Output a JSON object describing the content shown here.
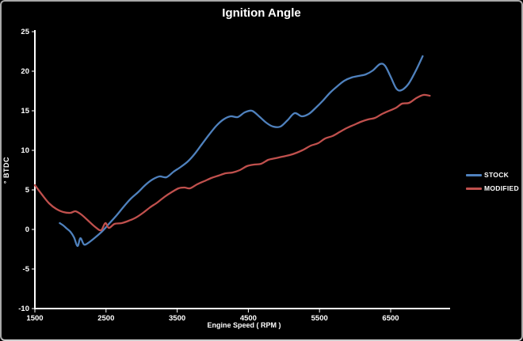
{
  "window": {
    "background": "#000000",
    "frame_border_color": "#a8a8a8",
    "text_color": "#ffffff"
  },
  "chart_data": {
    "type": "line",
    "title": "Ignition Angle",
    "xlabel": "Engine Speed ( RPM )",
    "ylabel": "° BTDC",
    "x_ticks": [
      1500,
      2500,
      3500,
      4500,
      5500,
      6500
    ],
    "y_ticks": [
      25,
      20,
      15,
      10,
      5,
      0,
      -5,
      -10
    ],
    "xlim": [
      1500,
      7335
    ],
    "ylim": [
      -10,
      25
    ],
    "grid": false,
    "legend_position": "right",
    "axis_color": "#ffffff",
    "series": [
      {
        "name": "STOCK",
        "color": "#4f81bd",
        "points": [
          [
            1850,
            0.8
          ],
          [
            1900,
            0.5
          ],
          [
            1950,
            0.1
          ],
          [
            2000,
            -0.3
          ],
          [
            2050,
            -1.0
          ],
          [
            2100,
            -2.1
          ],
          [
            2140,
            -1.1
          ],
          [
            2190,
            -1.9
          ],
          [
            2250,
            -1.7
          ],
          [
            2350,
            -1.0
          ],
          [
            2450,
            -0.2
          ],
          [
            2550,
            0.8
          ],
          [
            2650,
            1.8
          ],
          [
            2750,
            2.9
          ],
          [
            2850,
            3.9
          ],
          [
            2950,
            4.7
          ],
          [
            3050,
            5.6
          ],
          [
            3150,
            6.3
          ],
          [
            3250,
            6.7
          ],
          [
            3350,
            6.6
          ],
          [
            3450,
            7.3
          ],
          [
            3550,
            7.9
          ],
          [
            3650,
            8.6
          ],
          [
            3750,
            9.6
          ],
          [
            3850,
            10.8
          ],
          [
            3950,
            12.0
          ],
          [
            4050,
            13.1
          ],
          [
            4150,
            13.9
          ],
          [
            4250,
            14.3
          ],
          [
            4350,
            14.2
          ],
          [
            4450,
            14.8
          ],
          [
            4550,
            15.0
          ],
          [
            4650,
            14.3
          ],
          [
            4750,
            13.5
          ],
          [
            4850,
            13.0
          ],
          [
            4950,
            13.0
          ],
          [
            5050,
            13.8
          ],
          [
            5150,
            14.7
          ],
          [
            5250,
            14.3
          ],
          [
            5350,
            14.6
          ],
          [
            5450,
            15.4
          ],
          [
            5550,
            16.3
          ],
          [
            5650,
            17.3
          ],
          [
            5750,
            18.1
          ],
          [
            5850,
            18.8
          ],
          [
            5950,
            19.2
          ],
          [
            6050,
            19.4
          ],
          [
            6150,
            19.6
          ],
          [
            6250,
            20.1
          ],
          [
            6350,
            20.9
          ],
          [
            6420,
            20.7
          ],
          [
            6500,
            19.3
          ],
          [
            6580,
            17.8
          ],
          [
            6650,
            17.6
          ],
          [
            6750,
            18.4
          ],
          [
            6850,
            20.0
          ],
          [
            6950,
            21.9
          ]
        ]
      },
      {
        "name": "MODIFIED",
        "color": "#c0504d",
        "points": [
          [
            1500,
            5.6
          ],
          [
            1600,
            4.4
          ],
          [
            1700,
            3.3
          ],
          [
            1800,
            2.6
          ],
          [
            1900,
            2.2
          ],
          [
            2000,
            2.1
          ],
          [
            2070,
            2.3
          ],
          [
            2150,
            1.9
          ],
          [
            2250,
            1.1
          ],
          [
            2350,
            0.3
          ],
          [
            2430,
            -0.1
          ],
          [
            2490,
            0.8
          ],
          [
            2540,
            0.2
          ],
          [
            2620,
            0.7
          ],
          [
            2720,
            0.8
          ],
          [
            2820,
            1.1
          ],
          [
            2920,
            1.5
          ],
          [
            3020,
            2.1
          ],
          [
            3120,
            2.8
          ],
          [
            3220,
            3.4
          ],
          [
            3320,
            4.1
          ],
          [
            3420,
            4.7
          ],
          [
            3520,
            5.2
          ],
          [
            3600,
            5.3
          ],
          [
            3680,
            5.2
          ],
          [
            3780,
            5.7
          ],
          [
            3880,
            6.1
          ],
          [
            3980,
            6.5
          ],
          [
            4080,
            6.8
          ],
          [
            4180,
            7.1
          ],
          [
            4280,
            7.2
          ],
          [
            4380,
            7.5
          ],
          [
            4480,
            8.0
          ],
          [
            4580,
            8.2
          ],
          [
            4680,
            8.3
          ],
          [
            4780,
            8.8
          ],
          [
            4880,
            9.0
          ],
          [
            4980,
            9.2
          ],
          [
            5080,
            9.4
          ],
          [
            5180,
            9.7
          ],
          [
            5280,
            10.1
          ],
          [
            5380,
            10.6
          ],
          [
            5480,
            10.9
          ],
          [
            5580,
            11.5
          ],
          [
            5680,
            11.8
          ],
          [
            5780,
            12.3
          ],
          [
            5880,
            12.8
          ],
          [
            5980,
            13.2
          ],
          [
            6080,
            13.6
          ],
          [
            6180,
            13.9
          ],
          [
            6280,
            14.1
          ],
          [
            6380,
            14.6
          ],
          [
            6480,
            15.0
          ],
          [
            6580,
            15.4
          ],
          [
            6660,
            15.9
          ],
          [
            6760,
            16.0
          ],
          [
            6860,
            16.6
          ],
          [
            6960,
            17.0
          ],
          [
            7050,
            16.9
          ]
        ]
      }
    ]
  }
}
